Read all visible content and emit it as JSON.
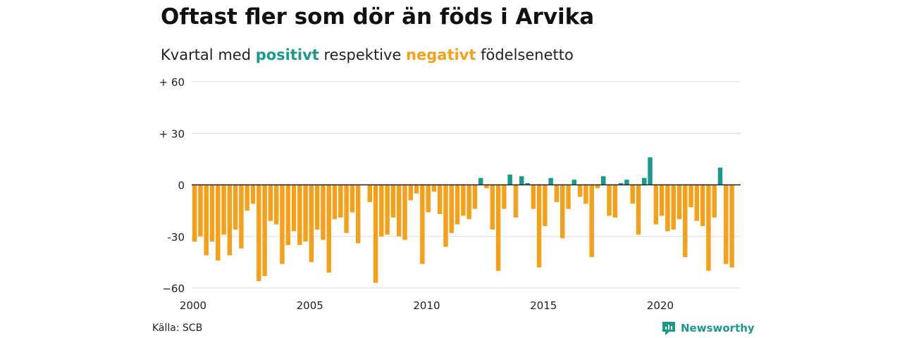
{
  "title": "Oftast fler som dör än föds i Arvika",
  "subtitle": {
    "prefix": "Kvartal med ",
    "positive": "positivt",
    "middle": " respektive ",
    "negative": "negativt",
    "suffix": " födelsenetto"
  },
  "source": "Källa: SCB",
  "brand": "Newsworthy",
  "colors": {
    "positive": "#1a9a8a",
    "negative": "#f5a01a",
    "grid": "#d9d9d9",
    "zero": "#222222"
  },
  "chart_data": {
    "type": "bar",
    "ylim": [
      -60,
      60
    ],
    "yticks": [
      {
        "value": 60,
        "label": "+ 60"
      },
      {
        "value": 30,
        "label": "+ 30"
      },
      {
        "value": 0,
        "label": "0"
      },
      {
        "value": -30,
        "label": "-30"
      },
      {
        "value": -60,
        "label": "−60"
      }
    ],
    "xlim": [
      2000,
      2023.5
    ],
    "xticks": [
      {
        "value": 2000,
        "label": "2000"
      },
      {
        "value": 2005,
        "label": "2005"
      },
      {
        "value": 2010,
        "label": "2010"
      },
      {
        "value": 2015,
        "label": "2015"
      },
      {
        "value": 2020,
        "label": "2020"
      }
    ],
    "grid": true,
    "quarters_start": "2000Q1",
    "values": [
      -33,
      -30,
      -41,
      -33,
      -44,
      -29,
      -41,
      -26,
      -37,
      -15,
      -11,
      -56,
      -53,
      -21,
      -23,
      -46,
      -35,
      -27,
      -35,
      -33,
      -45,
      -26,
      -32,
      -51,
      -20,
      -19,
      -28,
      -16,
      -34,
      0,
      -10,
      -57,
      -30,
      -29,
      -19,
      -30,
      -32,
      -9,
      -5,
      -46,
      -16,
      -4,
      -17,
      -36,
      -28,
      -23,
      -18,
      -20,
      -14,
      4,
      -2,
      -26,
      -50,
      -14,
      6,
      -19,
      5,
      1,
      -14,
      -48,
      -24,
      4,
      -10,
      -31,
      -14,
      3,
      -7,
      -11,
      -42,
      -2,
      5,
      -18,
      -19,
      1,
      3,
      -11,
      -29,
      4,
      16,
      -23,
      -18,
      -27,
      -26,
      -20,
      -42,
      -13,
      -21,
      -24,
      -50,
      -19,
      10,
      -46,
      -48
    ]
  }
}
